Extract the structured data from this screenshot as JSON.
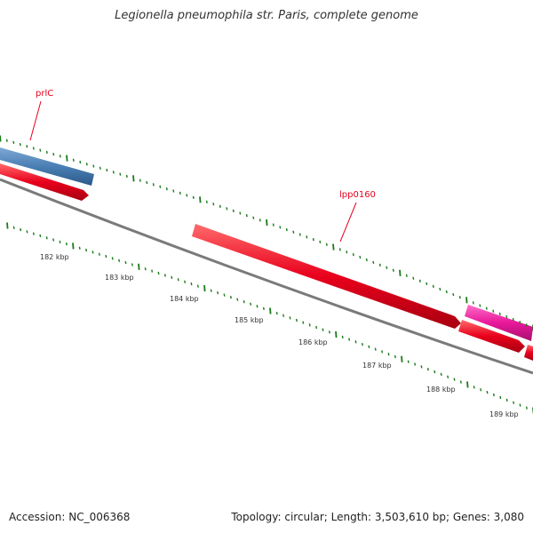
{
  "title": "Legionella pneumophila str. Paris, complete genome",
  "footer": {
    "accession": "Accession: NC_006368",
    "summary": "Topology: circular; Length: 3,503,610 bp; Genes: 3,080"
  },
  "gene_labels": [
    "prlC",
    "lpp0160"
  ],
  "kbp_labels": [
    "182 kbp",
    "183 kbp",
    "184 kbp",
    "185 kbp",
    "186 kbp",
    "187 kbp",
    "188 kbp",
    "189 kbp"
  ],
  "colors": {
    "red_gene": "#e8001c",
    "blue_gene": "#4a7fb5",
    "pink_gene": "#e8189a",
    "backbone": "#7a7a7a",
    "tick": "#1a7a1a",
    "label": "#e8001c"
  }
}
